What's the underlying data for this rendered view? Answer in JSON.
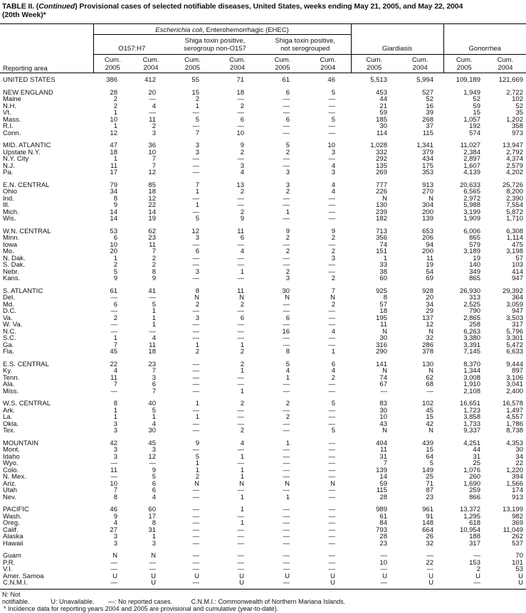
{
  "title": {
    "prefix": "TABLE II. (",
    "italic": "Continued",
    "rest": ") Provisional cases of selected notifiable diseases, United States, weeks ending May 21, 2005, and May 22, 2004",
    "line2": "(20th Week)*"
  },
  "header": {
    "group_italic": "Escherichia coli",
    "group_rest": ", Enterohemorrhagic (EHEC)",
    "sub": [
      "O157:H7",
      "Shiga toxin positive, serogroup non-O157",
      "Shiga toxin positive, not serogrouped"
    ],
    "giardiasis": "Giardiasis",
    "gonorrhea": "Gonorrhea",
    "reporting_area": "Reporting area",
    "cum2005": "Cum. 2005",
    "cum2004": "Cum. 2004"
  },
  "groups": [
    [
      [
        "UNITED STATES",
        "386",
        "412",
        "55",
        "71",
        "61",
        "46",
        "5,513",
        "5,994",
        "109,189",
        "121,669"
      ]
    ],
    [
      [
        "NEW ENGLAND",
        "28",
        "20",
        "15",
        "18",
        "6",
        "5",
        "453",
        "527",
        "1,949",
        "2,722"
      ],
      [
        "Maine",
        "2",
        "—",
        "2",
        "—",
        "—",
        "—",
        "44",
        "52",
        "52",
        "102"
      ],
      [
        "N.H.",
        "2",
        "4",
        "1",
        "2",
        "—",
        "—",
        "21",
        "16",
        "59",
        "52"
      ],
      [
        "Vt.",
        "1",
        "—",
        "—",
        "—",
        "—",
        "—",
        "59",
        "39",
        "15",
        "35"
      ],
      [
        "Mass.",
        "10",
        "11",
        "5",
        "6",
        "6",
        "5",
        "185",
        "268",
        "1,057",
        "1,202"
      ],
      [
        "R.I.",
        "1",
        "2",
        "—",
        "—",
        "—",
        "—",
        "30",
        "37",
        "192",
        "358"
      ],
      [
        "Conn.",
        "12",
        "3",
        "7",
        "10",
        "—",
        "—",
        "114",
        "115",
        "574",
        "973"
      ]
    ],
    [
      [
        "MID. ATLANTIC",
        "47",
        "36",
        "3",
        "9",
        "5",
        "10",
        "1,028",
        "1,341",
        "11,027",
        "13,947"
      ],
      [
        "Upstate N.Y.",
        "18",
        "10",
        "3",
        "2",
        "2",
        "3",
        "332",
        "379",
        "2,384",
        "2,792"
      ],
      [
        "N.Y. City",
        "1",
        "7",
        "—",
        "—",
        "—",
        "—",
        "292",
        "434",
        "2,897",
        "4,374"
      ],
      [
        "N.J.",
        "11",
        "7",
        "—",
        "3",
        "—",
        "4",
        "135",
        "175",
        "1,607",
        "2,579"
      ],
      [
        "Pa.",
        "17",
        "12",
        "—",
        "4",
        "3",
        "3",
        "269",
        "353",
        "4,139",
        "4,202"
      ]
    ],
    [
      [
        "E.N. CENTRAL",
        "79",
        "85",
        "7",
        "13",
        "3",
        "4",
        "777",
        "913",
        "20,633",
        "25,726"
      ],
      [
        "Ohio",
        "34",
        "18",
        "1",
        "2",
        "2",
        "4",
        "226",
        "270",
        "6,565",
        "8,200"
      ],
      [
        "Ind.",
        "8",
        "12",
        "—",
        "—",
        "—",
        "—",
        "N",
        "N",
        "2,972",
        "2,390"
      ],
      [
        "Ill.",
        "9",
        "22",
        "1",
        "—",
        "—",
        "—",
        "130",
        "304",
        "5,988",
        "7,554"
      ],
      [
        "Mich.",
        "14",
        "14",
        "—",
        "2",
        "1",
        "—",
        "239",
        "200",
        "3,199",
        "5,872"
      ],
      [
        "Wis.",
        "14",
        "19",
        "5",
        "9",
        "—",
        "—",
        "182",
        "139",
        "1,909",
        "1,710"
      ]
    ],
    [
      [
        "W.N. CENTRAL",
        "53",
        "62",
        "12",
        "11",
        "9",
        "9",
        "713",
        "653",
        "6,006",
        "6,308"
      ],
      [
        "Minn.",
        "6",
        "23",
        "3",
        "6",
        "2",
        "2",
        "356",
        "206",
        "865",
        "1,114"
      ],
      [
        "Iowa",
        "10",
        "11",
        "—",
        "—",
        "—",
        "—",
        "74",
        "94",
        "579",
        "475"
      ],
      [
        "Mo.",
        "20",
        "7",
        "6",
        "4",
        "2",
        "2",
        "151",
        "200",
        "3,189",
        "3,198"
      ],
      [
        "N. Dak.",
        "1",
        "2",
        "—",
        "—",
        "—",
        "3",
        "1",
        "11",
        "19",
        "57"
      ],
      [
        "S. Dak.",
        "2",
        "2",
        "—",
        "—",
        "—",
        "—",
        "33",
        "19",
        "140",
        "103"
      ],
      [
        "Nebr.",
        "5",
        "8",
        "3",
        "1",
        "2",
        "—",
        "38",
        "54",
        "349",
        "414"
      ],
      [
        "Kans.",
        "9",
        "9",
        "—",
        "—",
        "3",
        "2",
        "60",
        "69",
        "865",
        "947"
      ]
    ],
    [
      [
        "S. ATLANTIC",
        "61",
        "41",
        "8",
        "11",
        "30",
        "7",
        "925",
        "928",
        "26,930",
        "29,392"
      ],
      [
        "Del.",
        "—",
        "—",
        "N",
        "N",
        "N",
        "N",
        "8",
        "20",
        "313",
        "364"
      ],
      [
        "Md.",
        "6",
        "5",
        "2",
        "2",
        "—",
        "2",
        "57",
        "34",
        "2,525",
        "3,059"
      ],
      [
        "D.C.",
        "—",
        "1",
        "—",
        "—",
        "—",
        "—",
        "18",
        "29",
        "790",
        "947"
      ],
      [
        "Va.",
        "2",
        "1",
        "3",
        "6",
        "6",
        "—",
        "195",
        "137",
        "2,865",
        "3,503"
      ],
      [
        "W. Va.",
        "—",
        "1",
        "—",
        "—",
        "—",
        "—",
        "11",
        "12",
        "258",
        "317"
      ],
      [
        "N.C.",
        "—",
        "—",
        "—",
        "—",
        "16",
        "4",
        "N",
        "N",
        "6,263",
        "5,796"
      ],
      [
        "S.C.",
        "1",
        "4",
        "—",
        "—",
        "—",
        "—",
        "30",
        "32",
        "3,380",
        "3,301"
      ],
      [
        "Ga.",
        "7",
        "11",
        "1",
        "1",
        "—",
        "—",
        "316",
        "286",
        "3,391",
        "5,472"
      ],
      [
        "Fla.",
        "45",
        "18",
        "2",
        "2",
        "8",
        "1",
        "290",
        "378",
        "7,145",
        "6,633"
      ]
    ],
    [
      [
        "E.S. CENTRAL",
        "22",
        "23",
        "—",
        "2",
        "5",
        "6",
        "141",
        "130",
        "8,370",
        "9,444"
      ],
      [
        "Ky.",
        "4",
        "7",
        "—",
        "1",
        "4",
        "4",
        "N",
        "N",
        "1,344",
        "897"
      ],
      [
        "Tenn.",
        "11",
        "3",
        "—",
        "—",
        "1",
        "2",
        "74",
        "62",
        "3,008",
        "3,106"
      ],
      [
        "Ala.",
        "7",
        "6",
        "—",
        "—",
        "—",
        "—",
        "67",
        "68",
        "1,910",
        "3,041"
      ],
      [
        "Miss.",
        "—",
        "7",
        "—",
        "1",
        "—",
        "—",
        "—",
        "—",
        "2,108",
        "2,400"
      ]
    ],
    [
      [
        "W.S. CENTRAL",
        "8",
        "40",
        "1",
        "2",
        "2",
        "5",
        "83",
        "102",
        "16,651",
        "16,578"
      ],
      [
        "Ark.",
        "1",
        "5",
        "—",
        "—",
        "—",
        "—",
        "30",
        "45",
        "1,723",
        "1,497"
      ],
      [
        "La.",
        "1",
        "1",
        "1",
        "—",
        "2",
        "—",
        "10",
        "15",
        "3,858",
        "4,557"
      ],
      [
        "Okla.",
        "3",
        "4",
        "—",
        "—",
        "—",
        "—",
        "43",
        "42",
        "1,733",
        "1,786"
      ],
      [
        "Tex.",
        "3",
        "30",
        "—",
        "2",
        "—",
        "5",
        "N",
        "N",
        "9,337",
        "8,738"
      ]
    ],
    [
      [
        "MOUNTAIN",
        "42",
        "45",
        "9",
        "4",
        "1",
        "—",
        "404",
        "439",
        "4,251",
        "4,353"
      ],
      [
        "Mont.",
        "3",
        "3",
        "—",
        "—",
        "—",
        "—",
        "11",
        "15",
        "44",
        "30"
      ],
      [
        "Idaho",
        "3",
        "12",
        "5",
        "1",
        "—",
        "—",
        "31",
        "64",
        "31",
        "34"
      ],
      [
        "Wyo.",
        "—",
        "—",
        "1",
        "—",
        "—",
        "—",
        "7",
        "5",
        "25",
        "22"
      ],
      [
        "Colo.",
        "11",
        "9",
        "1",
        "1",
        "—",
        "—",
        "139",
        "149",
        "1,076",
        "1,220"
      ],
      [
        "N. Mex.",
        "—",
        "5",
        "2",
        "1",
        "—",
        "—",
        "14",
        "25",
        "260",
        "394"
      ],
      [
        "Ariz.",
        "10",
        "6",
        "N",
        "N",
        "N",
        "N",
        "59",
        "71",
        "1,690",
        "1,566"
      ],
      [
        "Utah",
        "7",
        "6",
        "—",
        "—",
        "—",
        "—",
        "115",
        "87",
        "259",
        "174"
      ],
      [
        "Nev.",
        "8",
        "4",
        "—",
        "1",
        "1",
        "—",
        "28",
        "23",
        "866",
        "913"
      ]
    ],
    [
      [
        "PACIFIC",
        "46",
        "60",
        "—",
        "1",
        "—",
        "—",
        "989",
        "961",
        "13,372",
        "13,199"
      ],
      [
        "Wash.",
        "9",
        "17",
        "—",
        "—",
        "—",
        "—",
        "61",
        "91",
        "1,295",
        "982"
      ],
      [
        "Oreg.",
        "4",
        "8",
        "—",
        "1",
        "—",
        "—",
        "84",
        "148",
        "618",
        "369"
      ],
      [
        "Calif.",
        "27",
        "31",
        "—",
        "—",
        "—",
        "—",
        "793",
        "664",
        "10,954",
        "11,049"
      ],
      [
        "Alaska",
        "3",
        "1",
        "—",
        "—",
        "—",
        "—",
        "28",
        "26",
        "188",
        "262"
      ],
      [
        "Hawaii",
        "3",
        "3",
        "—",
        "—",
        "—",
        "—",
        "23",
        "32",
        "317",
        "537"
      ]
    ],
    [
      [
        "Guam",
        "N",
        "N",
        "—",
        "—",
        "—",
        "—",
        "—",
        "—",
        "—",
        "70"
      ],
      [
        "P.R.",
        "—",
        "—",
        "—",
        "—",
        "—",
        "—",
        "10",
        "22",
        "153",
        "101"
      ],
      [
        "V.I.",
        "—",
        "—",
        "—",
        "—",
        "—",
        "—",
        "—",
        "—",
        "2",
        "53"
      ],
      [
        "Amer. Samoa",
        "U",
        "U",
        "U",
        "U",
        "U",
        "U",
        "U",
        "U",
        "U",
        "U"
      ],
      [
        "C.N.M.I.",
        "—",
        "U",
        "—",
        "U",
        "—",
        "U",
        "—",
        "U",
        "—",
        "U"
      ]
    ]
  ],
  "footer": {
    "n": "N: Not notifiable.",
    "u": "U: Unavailable.",
    "dash": "—: No reported cases.",
    "cnmi": "C.N.M.I.: Commonwealth of Northern Mariana Islands.",
    "note": "* Incidence data for reporting years 2004 and 2005 are provisional and cumulative (year-to-date)."
  }
}
